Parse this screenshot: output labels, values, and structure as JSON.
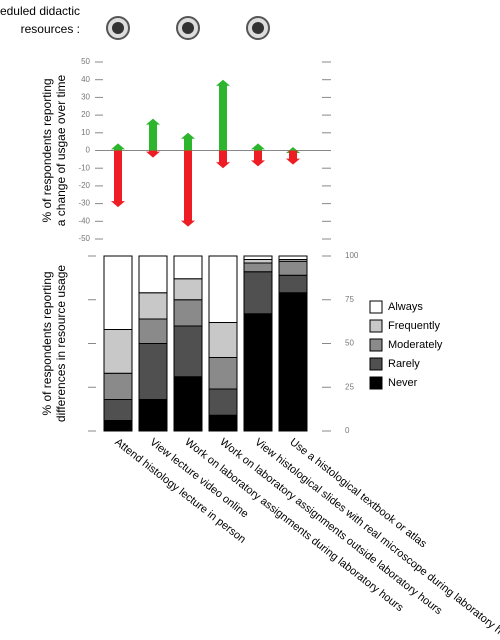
{
  "header": {
    "lines": [
      "Scheduled didactic",
      "resources :"
    ]
  },
  "chart_data": [
    {
      "type": "arrow",
      "ylabel": [
        "% of respondents reporting",
        "a change of usgae over time"
      ],
      "ylim": [
        -50,
        50
      ],
      "yticks": [
        -50,
        -40,
        -30,
        -20,
        -10,
        0,
        10,
        20,
        30,
        40,
        50
      ],
      "series": [
        {
          "color": "#2db52d",
          "values": [
            4,
            18,
            10,
            40,
            4,
            2
          ]
        },
        {
          "color": "#ee1c24",
          "values": [
            -32,
            -4,
            -43,
            -10,
            -9,
            -8
          ]
        }
      ]
    },
    {
      "type": "stacked_bar",
      "ylabel": [
        "% of respondents reporting",
        "differences in resource usage"
      ],
      "ylim": [
        0,
        100
      ],
      "yticks": [
        0,
        25,
        50,
        75,
        100
      ],
      "categories": [
        "Attend histology lecture in person",
        "View lecture video online",
        "Work on laboratory assignments during laboratory hours",
        "Work on laboratory assignments outside laboratory hours",
        "View histological slides with real microscope during laboratory hours",
        "Use a histological textbook or atlas"
      ],
      "series": [
        {
          "name": "Never",
          "color": "#000000",
          "values": [
            6,
            18,
            31,
            9,
            67,
            79
          ]
        },
        {
          "name": "Rarely",
          "color": "#505050",
          "values": [
            12,
            32,
            29,
            15,
            24,
            10
          ]
        },
        {
          "name": "Moderately",
          "color": "#8a8a8a",
          "values": [
            15,
            14,
            15,
            18,
            5,
            8
          ]
        },
        {
          "name": "Frequently",
          "color": "#c8c8c8",
          "values": [
            25,
            15,
            12,
            20,
            2,
            1
          ]
        },
        {
          "name": "Always",
          "color": "#ffffff",
          "values": [
            42,
            21,
            13,
            38,
            2,
            2
          ]
        }
      ]
    }
  ]
}
